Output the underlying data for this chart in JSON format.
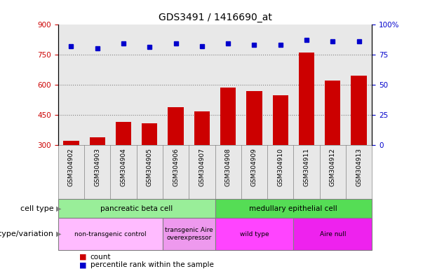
{
  "title": "GDS3491 / 1416690_at",
  "samples": [
    "GSM304902",
    "GSM304903",
    "GSM304904",
    "GSM304905",
    "GSM304906",
    "GSM304907",
    "GSM304908",
    "GSM304909",
    "GSM304910",
    "GSM304911",
    "GSM304912",
    "GSM304913"
  ],
  "counts": [
    322,
    340,
    415,
    408,
    490,
    468,
    585,
    568,
    548,
    760,
    620,
    645
  ],
  "percentiles": [
    82,
    80,
    84,
    81,
    84,
    82,
    84,
    83,
    83,
    87,
    86,
    86
  ],
  "bar_color": "#cc0000",
  "dot_color": "#0000cc",
  "ylim_left": [
    300,
    900
  ],
  "ylim_right": [
    0,
    100
  ],
  "yticks_left": [
    300,
    450,
    600,
    750,
    900
  ],
  "yticks_right": [
    0,
    25,
    50,
    75,
    100
  ],
  "cell_types": [
    {
      "label": "pancreatic beta cell",
      "start": 0,
      "end": 6,
      "color": "#99ee99"
    },
    {
      "label": "medullary epithelial cell",
      "start": 6,
      "end": 12,
      "color": "#55dd55"
    }
  ],
  "genotypes": [
    {
      "label": "non-transgenic control",
      "start": 0,
      "end": 4,
      "color": "#ffbbff"
    },
    {
      "label": "transgenic Aire\noverexpressor",
      "start": 4,
      "end": 6,
      "color": "#ee99ee"
    },
    {
      "label": "wild type",
      "start": 6,
      "end": 9,
      "color": "#ff44ff"
    },
    {
      "label": "Aire null",
      "start": 9,
      "end": 12,
      "color": "#ee22ee"
    }
  ],
  "legend_count_color": "#cc0000",
  "legend_dot_color": "#0000cc",
  "background_color": "#ffffff",
  "plot_bg_color": "#e8e8e8"
}
